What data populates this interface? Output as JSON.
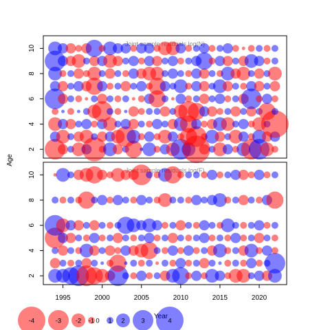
{
  "chart_data": [
    {
      "type": "scatter",
      "title": "Joint sample residuals log(N)",
      "ylabel": "Age",
      "xlim": [
        1992.5,
        2023.5
      ],
      "ylim": [
        1.3,
        11.0
      ],
      "y_ticks": [
        "2",
        "4",
        "6",
        "8",
        "10"
      ],
      "years": [
        1994,
        1995,
        1996,
        1997,
        1998,
        1999,
        2000,
        2001,
        2002,
        2003,
        2004,
        2005,
        2006,
        2007,
        2008,
        2009,
        2010,
        2011,
        2012,
        2013,
        2014,
        2015,
        2016,
        2017,
        2018,
        2019,
        2020,
        2021,
        2022
      ],
      "ages": [
        2,
        3,
        4,
        5,
        6,
        7,
        8,
        9,
        10
      ],
      "residuals": {
        "2": [
          -3.0,
          -1.5,
          1.0,
          -2.0,
          1.5,
          -3.5,
          -1.0,
          2.0,
          -1.5,
          1.0,
          -2.5,
          0.5,
          2.0,
          -1.0,
          1.5,
          -2.0,
          3.0,
          2.0,
          -4.0,
          -1.5,
          1.0,
          -2.0,
          1.5,
          -1.0,
          2.0,
          -3.0,
          3.0,
          -2.0,
          -1.0
        ],
        "3": [
          1.5,
          -2.0,
          1.0,
          -1.5,
          -2.0,
          1.0,
          -1.5,
          1.5,
          -2.0,
          -3.0,
          2.0,
          -1.0,
          1.5,
          -1.0,
          -2.0,
          1.5,
          -1.0,
          -2.5,
          -3.0,
          -1.0,
          2.0,
          -1.5,
          1.0,
          -2.0,
          1.5,
          -1.0,
          2.0,
          -1.5,
          1.5
        ],
        "4": [
          -2.0,
          1.5,
          -1.5,
          1.0,
          1.5,
          -1.0,
          1.5,
          -2.0,
          1.0,
          1.5,
          -1.5,
          1.0,
          -1.0,
          1.5,
          1.0,
          -1.5,
          2.0,
          -2.5,
          1.5,
          -1.0,
          -1.5,
          2.0,
          -2.0,
          1.0,
          1.5,
          -1.0,
          -2.0,
          1.0,
          -4.0
        ],
        "5": [
          -1.0,
          0.5,
          -1.0,
          0.5,
          1.0,
          -2.0,
          -3.0,
          1.0,
          -1.0,
          0.5,
          -1.5,
          -1.0,
          1.0,
          1.0,
          -1.5,
          1.0,
          -2.0,
          -3.0,
          -2.5,
          1.5,
          -1.5,
          -1.0,
          1.0,
          -1.5,
          1.0,
          -1.5,
          1.0,
          -2.5,
          1.0
        ],
        "6": [
          3.0,
          -1.5,
          1.0,
          -1.0,
          -0.5,
          1.0,
          -1.5,
          1.0,
          -1.0,
          1.0,
          -0.5,
          -1.0,
          1.5,
          -2.5,
          1.0,
          -0.5,
          1.5,
          -1.0,
          1.0,
          -1.5,
          1.0,
          1.5,
          -1.0,
          1.0,
          -1.5,
          3.0,
          -1.0,
          1.5,
          -1.0
        ],
        "7": [
          1.5,
          -1.5,
          1.0,
          1.5,
          -1.5,
          -2.5,
          1.5,
          -1.0,
          1.0,
          -1.5,
          1.0,
          1.5,
          -1.0,
          -2.5,
          1.5,
          1.0,
          2.0,
          -1.0,
          1.5,
          -1.5,
          1.0,
          2.0,
          -1.5,
          1.0,
          -1.0,
          1.5,
          -1.5,
          1.0,
          -1.5
        ],
        "8": [
          2.0,
          -1.0,
          1.0,
          -1.5,
          -1.0,
          -2.0,
          1.0,
          -1.5,
          1.0,
          -1.0,
          1.5,
          -1.5,
          -2.0,
          -2.0,
          1.0,
          1.5,
          1.0,
          -1.0,
          1.5,
          -1.5,
          1.0,
          -1.0,
          2.0,
          -1.5,
          -2.0,
          1.0,
          -1.5,
          1.0,
          -2.0
        ],
        "9": [
          3.0,
          1.5,
          -1.5,
          -2.0,
          1.0,
          -1.5,
          1.5,
          -2.0,
          -1.5,
          1.0,
          1.5,
          -1.0,
          1.5,
          -1.5,
          1.0,
          1.5,
          -1.0,
          1.0,
          1.5,
          2.5,
          -1.0,
          1.5,
          -1.5,
          1.0,
          -1.5,
          2.0,
          1.5,
          -1.0,
          1.0
        ],
        "10": [
          2.0,
          1.5,
          -1.5,
          -1.0,
          -1.5,
          2.5,
          -1.0,
          2.0,
          1.5,
          1.5,
          -1.0,
          1.5,
          1.5,
          -1.0,
          -2.0,
          -2.0,
          1.5,
          -1.0,
          1.0,
          1.5,
          -1.0,
          1.0,
          1.5,
          -1.0,
          -0.5,
          -1.0,
          1.0,
          -1.0,
          1.0
        ]
      }
    },
    {
      "type": "scatter",
      "title": "Joint sample residuals log(F)",
      "xlabel": "Year",
      "xlim": [
        1992.5,
        2023.5
      ],
      "ylim": [
        1.3,
        11.0
      ],
      "x_ticks": [
        "1995",
        "2000",
        "2005",
        "2010",
        "2015",
        "2020"
      ],
      "y_ticks": [
        "2",
        "4",
        "6",
        "8",
        "10"
      ],
      "years": [
        1994,
        1995,
        1996,
        1997,
        1998,
        1999,
        2000,
        2001,
        2002,
        2003,
        2004,
        2005,
        2006,
        2007,
        2008,
        2009,
        2010,
        2011,
        2012,
        2013,
        2014,
        2015,
        2016,
        2017,
        2018,
        2019,
        2020,
        2021,
        2022
      ],
      "ages": [
        2,
        3,
        4,
        5,
        6,
        8,
        10
      ],
      "residuals": {
        "2": [
          2.0,
          2.0,
          2.5,
          3.0,
          -3.0,
          -2.5,
          -2.0,
          -1.5,
          3.0,
          1.0,
          -1.0,
          1.5,
          -1.0,
          1.0,
          -1.5,
          2.0,
          2.5,
          -1.0,
          1.5,
          -1.0,
          2.0,
          1.5,
          -1.0,
          -2.0,
          -2.0,
          1.0,
          1.5,
          -1.5,
          2.0
        ],
        "3": [
          -1.5,
          1.0,
          -1.0,
          1.0,
          -1.5,
          1.0,
          0.5,
          -1.0,
          -2.5,
          0.5,
          1.0,
          -1.0,
          1.0,
          -0.5,
          1.0,
          -1.0,
          1.5,
          -1.0,
          1.0,
          -1.5,
          1.0,
          0.5,
          -1.0,
          1.0,
          -1.0,
          1.5,
          -1.0,
          1.0,
          3.0
        ],
        "4": [
          1.0,
          -1.5,
          1.0,
          -1.0,
          2.0,
          -1.5,
          1.0,
          -1.5,
          -1.0,
          1.5,
          -1.5,
          -2.0,
          -2.5,
          1.0,
          -1.0,
          1.5,
          -1.0,
          1.5,
          -1.0,
          1.0,
          -1.5,
          2.0,
          -1.0,
          1.0,
          -1.5,
          2.0,
          -1.0,
          1.5,
          -1.0
        ],
        "5": [
          -3.0,
          1.5,
          -1.5,
          1.0,
          -1.0,
          1.5,
          -1.0,
          1.0,
          -1.5,
          1.0,
          -1.0,
          1.0,
          1.5,
          -1.0,
          1.0,
          -1.5,
          1.0,
          -1.0,
          1.0,
          1.5,
          -1.0,
          1.0,
          -1.0,
          1.5,
          -1.0,
          1.0,
          -1.5,
          1.0,
          -1.0
        ],
        "6": [
          3.0,
          -2.0,
          1.5,
          -1.5,
          1.0,
          -1.5,
          1.0,
          -1.0,
          1.0,
          2.5,
          2.0,
          1.5,
          2.0,
          1.5,
          -1.0,
          1.0,
          -1.5,
          1.0,
          -1.0,
          1.5,
          1.0,
          -1.0,
          2.0,
          1.0,
          -1.0,
          1.0,
          1.5,
          -1.0,
          1.0
        ],
        "8": [
          1.0,
          -1.0,
          1.0,
          -1.0,
          -2.5,
          1.0,
          1.5,
          -1.0,
          1.5,
          1.0,
          -1.0,
          1.5,
          1.0,
          -1.0,
          -2.0,
          1.0,
          1.0,
          -1.0,
          1.5,
          1.0,
          1.5,
          2.0,
          -1.0,
          1.0,
          -1.5,
          1.0,
          -1.0,
          1.5,
          -2.5
        ],
        "10": [
          -0.5,
          2.0,
          1.0,
          -1.5,
          -2.0,
          -2.5,
          -1.5,
          -1.0,
          -2.0,
          -1.5,
          -1.5,
          -3.0,
          1.0,
          -1.0,
          2.0,
          -2.5,
          -1.0,
          1.0,
          1.0,
          -1.0,
          1.5,
          -1.0,
          1.0,
          1.5,
          -1.5,
          -1.0,
          1.5,
          -1.0,
          1.0
        ]
      }
    }
  ],
  "legend": {
    "items": [
      {
        "label": "-4",
        "value": -4
      },
      {
        "label": "-3",
        "value": -3
      },
      {
        "label": "-2",
        "value": -2
      },
      {
        "label": "-1",
        "value": -1
      },
      {
        "label": "0",
        "value": 0
      },
      {
        "label": "1",
        "value": 1
      },
      {
        "label": "2",
        "value": 2
      },
      {
        "label": "3",
        "value": 3
      },
      {
        "label": "4",
        "value": 4
      }
    ]
  },
  "colors": {
    "negative": "#ff0000",
    "positive": "#0000ff",
    "bubble_opacity": 0.5,
    "axis": "#000000",
    "title_text": "#888888"
  }
}
